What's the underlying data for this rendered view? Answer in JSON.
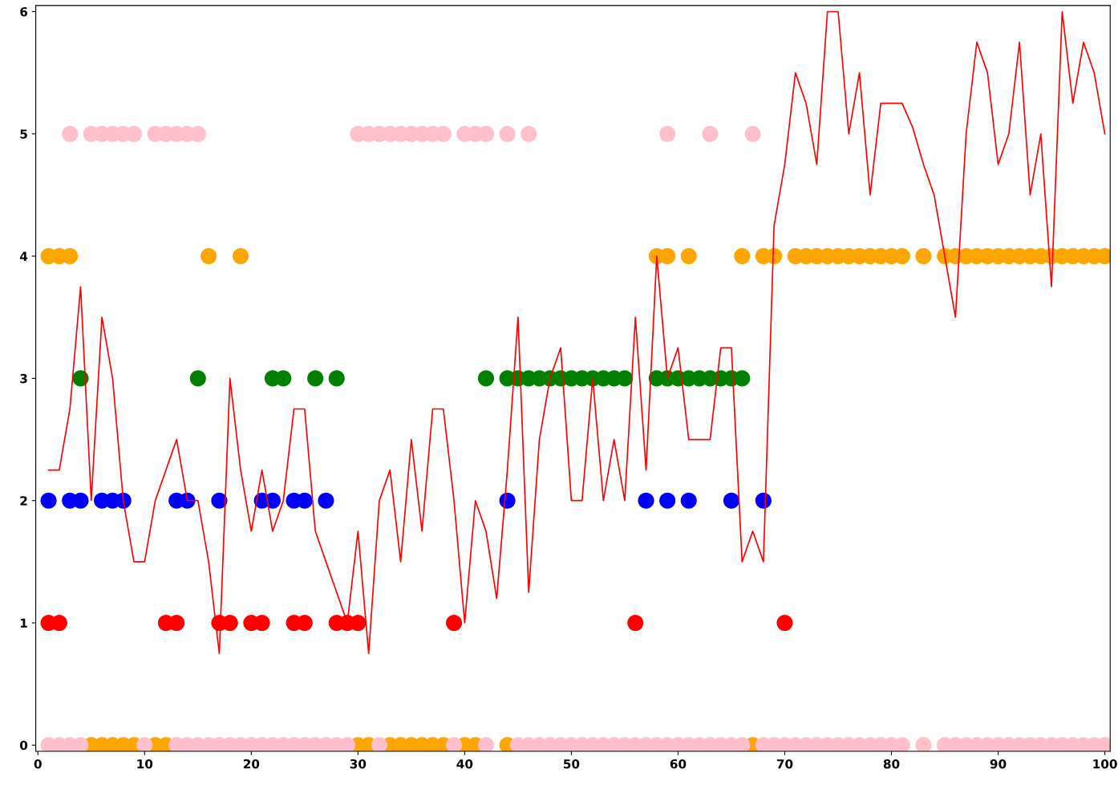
{
  "chart_data": {
    "type": "scatter",
    "xlim": [
      -0.2,
      100.5
    ],
    "ylim": [
      -0.05,
      6.05
    ],
    "xticks": [
      0,
      10,
      20,
      30,
      40,
      50,
      60,
      70,
      80,
      90,
      100
    ],
    "yticks": [
      0,
      1,
      2,
      3,
      4,
      5,
      6
    ],
    "grid": false,
    "marker": "circle",
    "series": [
      {
        "color": "#ff0000",
        "x": [
          1,
          2,
          12,
          13,
          17,
          18,
          20,
          21,
          24,
          25,
          28,
          29,
          30,
          39,
          56,
          70
        ],
        "values": [
          1,
          1,
          1,
          1,
          1,
          1,
          1,
          1,
          1,
          1,
          1,
          1,
          1,
          1,
          1,
          1
        ]
      },
      {
        "color": "#0000ff",
        "x": [
          1,
          3,
          4,
          6,
          7,
          8,
          13,
          14,
          17,
          21,
          22,
          24,
          25,
          27,
          44,
          57,
          59,
          61,
          65,
          68
        ],
        "values": [
          2,
          2,
          2,
          2,
          2,
          2,
          2,
          2,
          2,
          2,
          2,
          2,
          2,
          2,
          2,
          2,
          2,
          2,
          2,
          2
        ]
      },
      {
        "color": "#008000",
        "x": [
          4,
          15,
          22,
          23,
          26,
          28,
          42,
          44,
          45,
          46,
          47,
          48,
          49,
          50,
          51,
          52,
          53,
          54,
          55,
          58,
          59,
          60,
          61,
          62,
          63,
          64,
          65,
          66
        ],
        "values": [
          3,
          3,
          3,
          3,
          3,
          3,
          3,
          3,
          3,
          3,
          3,
          3,
          3,
          3,
          3,
          3,
          3,
          3,
          3,
          3,
          3,
          3,
          3,
          3,
          3,
          3,
          3,
          3
        ]
      },
      {
        "color": "#ffa500",
        "x": [
          1,
          2,
          3,
          16,
          19,
          58,
          59,
          61,
          66,
          68,
          69,
          71,
          72,
          73,
          74,
          75,
          76,
          77,
          78,
          79,
          80,
          81,
          83,
          85,
          86,
          87,
          88,
          89,
          90,
          91,
          92,
          93,
          94,
          95,
          96,
          97,
          98,
          99,
          100,
          5,
          6,
          7,
          8,
          9,
          11,
          12,
          30,
          31,
          33,
          34,
          35,
          36,
          37,
          38,
          40,
          41,
          44,
          67
        ],
        "values": [
          4,
          4,
          4,
          4,
          4,
          4,
          4,
          4,
          4,
          4,
          4,
          4,
          4,
          4,
          4,
          4,
          4,
          4,
          4,
          4,
          4,
          4,
          4,
          4,
          4,
          4,
          4,
          4,
          4,
          4,
          4,
          4,
          4,
          4,
          4,
          4,
          4,
          4,
          4,
          0,
          0,
          0,
          0,
          0,
          0,
          0,
          0,
          0,
          0,
          0,
          0,
          0,
          0,
          0,
          0,
          0,
          0,
          0
        ]
      },
      {
        "color": "#ffc0cb",
        "x": [
          3,
          5,
          6,
          7,
          8,
          9,
          11,
          12,
          13,
          14,
          15,
          30,
          31,
          32,
          33,
          34,
          35,
          36,
          37,
          38,
          40,
          41,
          42,
          44,
          46,
          59,
          63,
          67,
          1,
          2,
          3,
          4,
          10,
          13,
          14,
          15,
          16,
          17,
          18,
          19,
          20,
          21,
          22,
          23,
          24,
          25,
          26,
          27,
          28,
          29,
          32,
          39,
          42,
          45,
          46,
          47,
          48,
          49,
          50,
          51,
          52,
          53,
          54,
          55,
          56,
          57,
          58,
          59,
          60,
          61,
          62,
          63,
          64,
          65,
          66,
          68,
          69,
          70,
          71,
          72,
          73,
          74,
          75,
          76,
          77,
          78,
          79,
          80,
          81,
          83,
          85,
          86,
          87,
          88,
          89,
          90,
          91,
          92,
          93,
          94,
          95,
          96,
          97,
          98,
          99,
          100
        ],
        "values": [
          5,
          5,
          5,
          5,
          5,
          5,
          5,
          5,
          5,
          5,
          5,
          5,
          5,
          5,
          5,
          5,
          5,
          5,
          5,
          5,
          5,
          5,
          5,
          5,
          5,
          5,
          5,
          5,
          0,
          0,
          0,
          0,
          0,
          0,
          0,
          0,
          0,
          0,
          0,
          0,
          0,
          0,
          0,
          0,
          0,
          0,
          0,
          0,
          0,
          0,
          0,
          0,
          0,
          0,
          0,
          0,
          0,
          0,
          0,
          0,
          0,
          0,
          0,
          0,
          0,
          0,
          0,
          0,
          0,
          0,
          0,
          0,
          0,
          0,
          0,
          0,
          0,
          0,
          0,
          0,
          0,
          0,
          0,
          0,
          0,
          0,
          0,
          0,
          0,
          0,
          0,
          0,
          0,
          0,
          0,
          0,
          0,
          0,
          0,
          0,
          0,
          0,
          0,
          0,
          0,
          0
        ]
      },
      {
        "type": "line",
        "marker": "none",
        "line_style": "solid",
        "color": "#ff0000",
        "x": [
          1,
          2,
          3,
          4,
          5,
          6,
          7,
          8,
          9,
          10,
          11,
          12,
          13,
          14,
          15,
          16,
          17,
          18,
          19,
          20,
          21,
          22,
          23,
          24,
          25,
          26,
          27,
          28,
          29,
          30,
          31,
          32,
          33,
          34,
          35,
          36,
          37,
          38,
          39,
          40,
          41,
          42,
          43,
          44,
          45,
          46,
          47,
          48,
          49,
          50,
          51,
          52,
          53,
          54,
          55,
          56,
          57,
          58,
          59,
          60,
          61,
          62,
          63,
          64,
          65,
          66,
          67,
          68,
          69,
          70,
          71,
          72,
          73,
          74,
          75,
          76,
          77,
          78,
          79,
          80,
          81,
          82,
          83,
          84,
          85,
          86,
          87,
          88,
          89,
          90,
          91,
          92,
          93,
          94,
          95,
          96,
          97,
          98,
          99,
          100
        ],
        "values": [
          2.25,
          2.25,
          2.75,
          3.75,
          2.0,
          3.5,
          3.0,
          2.0,
          1.5,
          1.5,
          2.0,
          2.25,
          2.5,
          2.0,
          2.0,
          1.5,
          0.75,
          3.0,
          2.25,
          1.75,
          2.25,
          1.75,
          2.0,
          2.75,
          2.75,
          1.75,
          1.5,
          1.25,
          1.0,
          1.75,
          0.75,
          2.0,
          2.25,
          1.5,
          2.5,
          1.75,
          2.75,
          2.75,
          2.0,
          1.0,
          2.0,
          1.75,
          1.2,
          2.25,
          3.5,
          1.25,
          2.5,
          3.0,
          3.25,
          2.0,
          2.0,
          3.0,
          2.0,
          2.5,
          2.0,
          3.5,
          2.25,
          4.0,
          3.0,
          3.25,
          2.5,
          2.5,
          2.5,
          3.25,
          3.25,
          1.5,
          1.75,
          1.5,
          4.25,
          4.75,
          5.5,
          5.25,
          4.75,
          6.0,
          6.0,
          5.0,
          5.5,
          4.5,
          5.25,
          5.25,
          5.25,
          5.05,
          4.75,
          4.5,
          4.0,
          3.5,
          5.0,
          5.75,
          5.5,
          4.75,
          5.0,
          5.75,
          4.5,
          5.0,
          3.75,
          6.0,
          5.25,
          5.75,
          5.5,
          5.0
        ]
      }
    ]
  }
}
